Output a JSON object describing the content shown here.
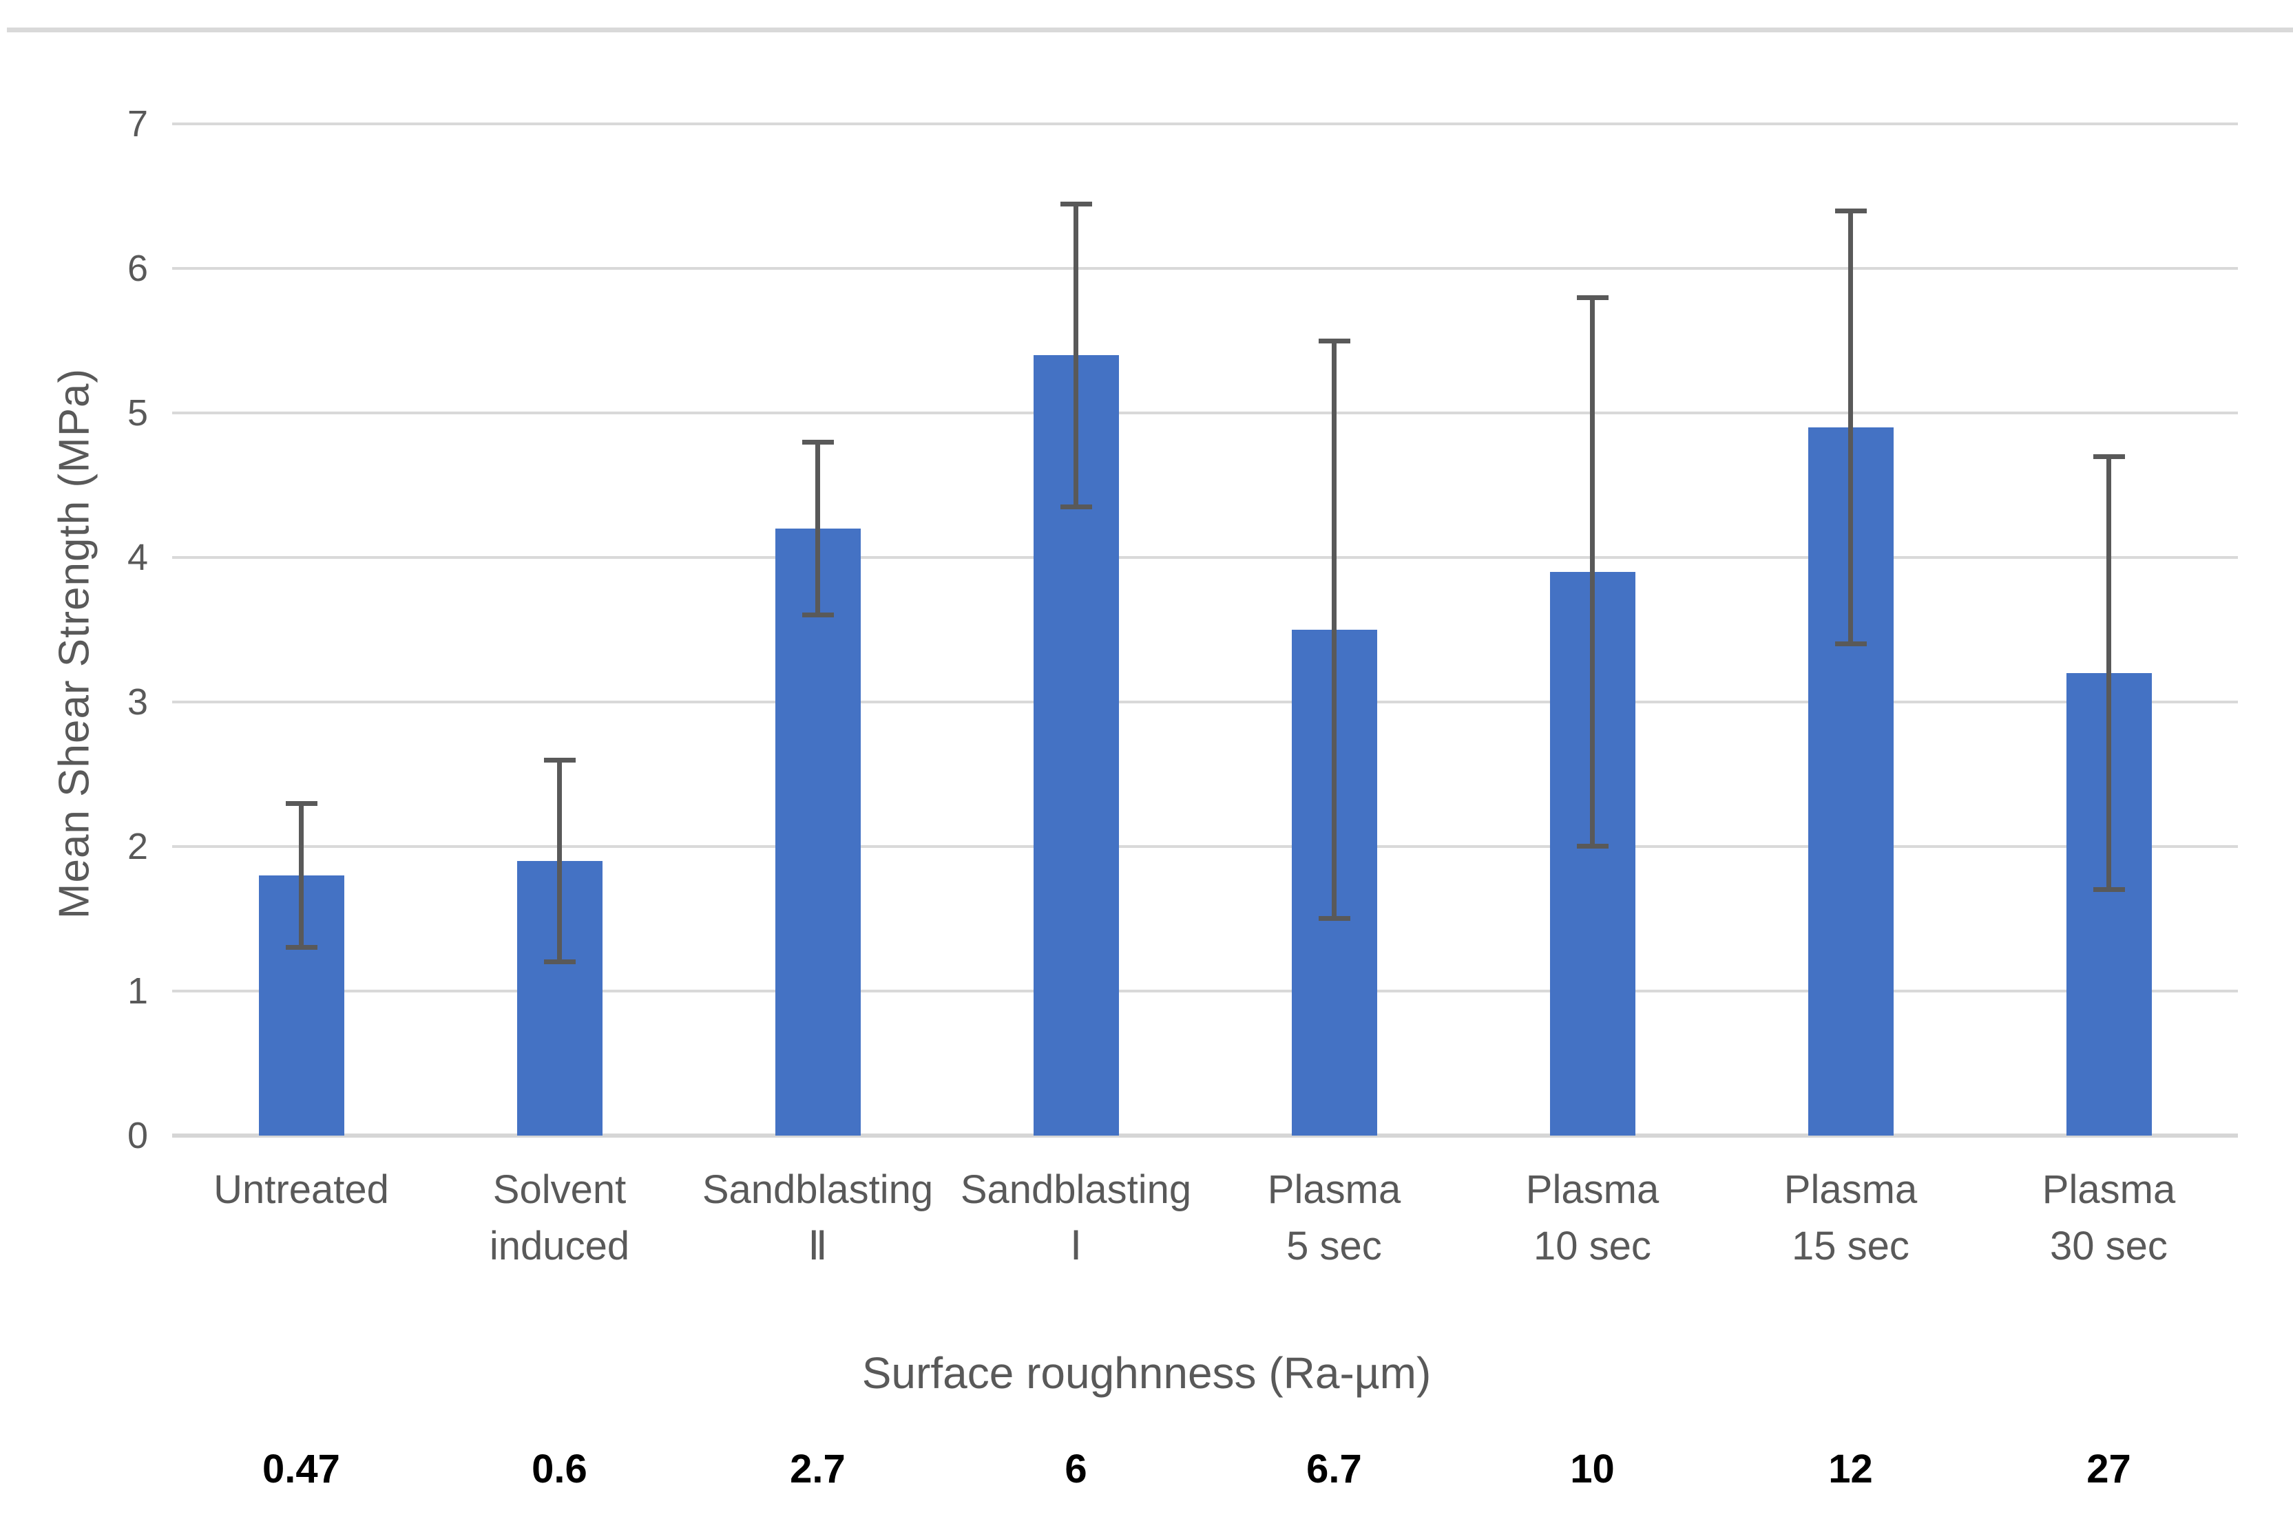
{
  "page": {
    "background_color": "#ffffff",
    "top_border_color": "#d9d9d9"
  },
  "chart_data": {
    "type": "bar",
    "title": "",
    "ylabel": "Mean Shear Strength  (MPa)",
    "secondary_xlabel": "Surface roughnness (Ra-µm)",
    "ylim": [
      0,
      7
    ],
    "yticks": [
      0,
      1,
      2,
      3,
      4,
      5,
      6,
      7
    ],
    "grid": true,
    "legend": "none",
    "categories": [
      [
        "Untreated"
      ],
      [
        "Solvent",
        "induced"
      ],
      [
        "Sandblasting",
        "Ⅱ"
      ],
      [
        "Sandblasting",
        "Ⅰ"
      ],
      [
        "Plasma",
        "5 sec"
      ],
      [
        "Plasma",
        "10 sec"
      ],
      [
        "Plasma",
        "15 sec"
      ],
      [
        "Plasma",
        "30 sec"
      ]
    ],
    "series": [
      {
        "name": "Mean Shear Strength (MPa)",
        "values": [
          1.8,
          1.9,
          4.2,
          5.4,
          3.5,
          3.9,
          4.9,
          3.2
        ],
        "error_low": [
          1.3,
          1.2,
          3.6,
          4.35,
          1.5,
          2.0,
          3.4,
          1.7
        ],
        "error_high": [
          2.3,
          2.6,
          4.8,
          6.45,
          5.5,
          5.8,
          6.4,
          4.7
        ]
      }
    ],
    "secondary_axis_values": [
      "0.47",
      "0.6",
      "2.7",
      "6",
      "6.7",
      "10",
      "12",
      "27"
    ],
    "colors": {
      "bar_fill": "#4472c4",
      "error_bar": "#595959",
      "gridline": "#d9d9d9",
      "axis_line": "#d6d6d6",
      "tick_label": "#595959",
      "category_label": "#595959",
      "axis_title": "#595959",
      "secondary_value": "#000000"
    }
  }
}
